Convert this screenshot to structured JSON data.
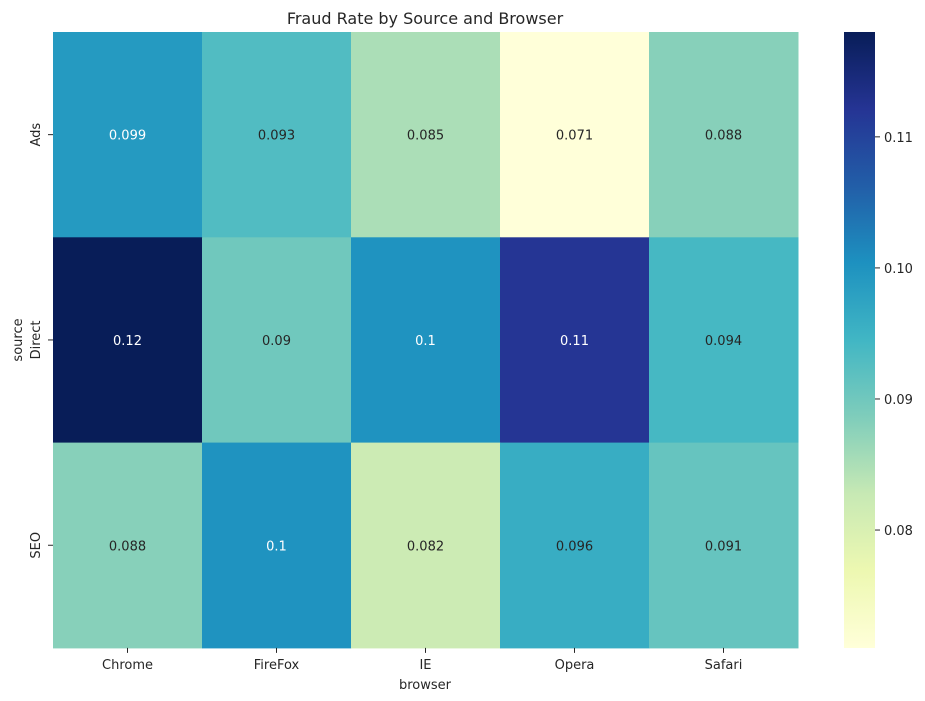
{
  "chart_data": {
    "type": "heatmap",
    "title": "Fraud Rate by Source and Browser",
    "xlabel": "browser",
    "ylabel": "source",
    "x_categories": [
      "Chrome",
      "FireFox",
      "IE",
      "Opera",
      "Safari"
    ],
    "y_categories": [
      "Ads",
      "Direct",
      "SEO"
    ],
    "values": [
      [
        0.099,
        0.093,
        0.085,
        0.071,
        0.088
      ],
      [
        0.118,
        0.09,
        0.1,
        0.112,
        0.094
      ],
      [
        0.088,
        0.1,
        0.082,
        0.096,
        0.091
      ]
    ],
    "cell_labels": [
      [
        "0.099",
        "0.093",
        "0.085",
        "0.071",
        "0.088"
      ],
      [
        "0.12",
        "0.09",
        "0.1",
        "0.11",
        "0.094"
      ],
      [
        "0.088",
        "0.1",
        "0.082",
        "0.096",
        "0.091"
      ]
    ],
    "colormap": "YlGnBu",
    "colorbar": {
      "range": [
        0.071,
        0.118
      ],
      "ticks": [
        0.08,
        0.09,
        0.1,
        0.11
      ],
      "tick_labels": [
        "0.08",
        "0.09",
        "0.10",
        "0.11"
      ]
    },
    "legend": "colorbar right"
  }
}
